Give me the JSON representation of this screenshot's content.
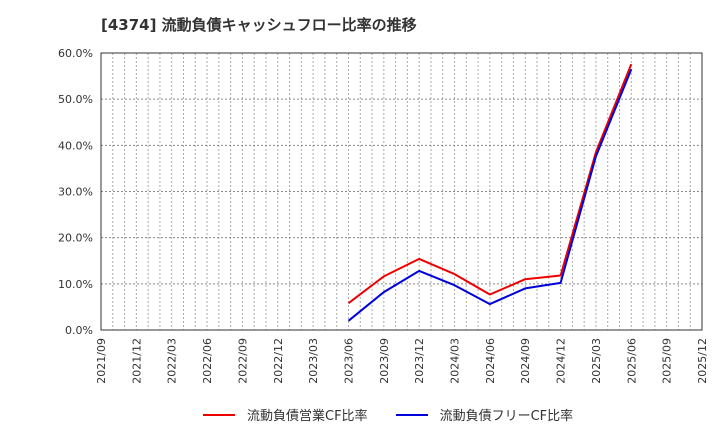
{
  "title": "[4374]  流動負債キャッシュフロー比率の推移",
  "colors": {
    "series_operating": "#ee0000",
    "series_free": "#0000dd",
    "grid": "#aaaaaa",
    "axis": "#333333"
  },
  "legend": {
    "items": [
      {
        "label": "流動負債営業CF比率",
        "color": "#ee0000"
      },
      {
        "label": "流動負債フリーCF比率",
        "color": "#0000dd"
      }
    ]
  },
  "chart_data": {
    "type": "line",
    "title": "[4374]  流動負債キャッシュフロー比率の推移",
    "xlabel": "",
    "ylabel": "",
    "ylim": [
      0,
      60
    ],
    "yticks": [
      "0.0%",
      "10.0%",
      "20.0%",
      "30.0%",
      "40.0%",
      "50.0%",
      "60.0%"
    ],
    "xticks": [
      "2021/09",
      "2021/12",
      "2022/03",
      "2022/06",
      "2022/09",
      "2022/12",
      "2023/03",
      "2023/06",
      "2023/09",
      "2023/12",
      "2024/03",
      "2024/06",
      "2024/09",
      "2024/12",
      "2025/03",
      "2025/06",
      "2025/09",
      "2025/12"
    ],
    "grid": true,
    "legend_position": "bottom",
    "x": [
      "2023/06",
      "2023/09",
      "2023/12",
      "2024/03",
      "2024/06",
      "2024/09",
      "2024/12",
      "2025/03",
      "2025/06"
    ],
    "series": [
      {
        "name": "流動負債営業CF比率",
        "color": "#ee0000",
        "values": [
          5.8,
          11.6,
          15.4,
          12.1,
          7.7,
          11.0,
          11.8,
          38.5,
          57.6
        ]
      },
      {
        "name": "流動負債フリーCF比率",
        "color": "#0000dd",
        "values": [
          2.0,
          8.2,
          12.8,
          9.7,
          5.6,
          9.0,
          10.2,
          37.6,
          56.5
        ]
      }
    ]
  }
}
